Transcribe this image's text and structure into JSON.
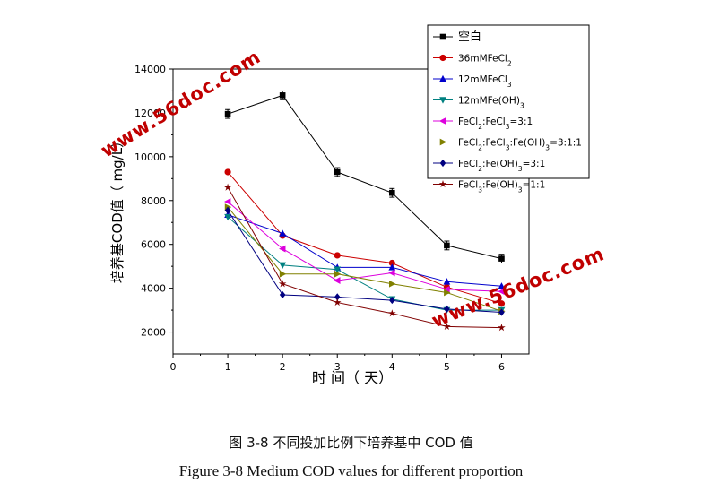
{
  "chart_data": {
    "type": "line",
    "xlabel": "时 间（ 天）",
    "ylabel": "培养基COD值（ mg/L）",
    "x": [
      1,
      2,
      3,
      4,
      5,
      6
    ],
    "xlim": [
      0,
      6.5
    ],
    "ylim": [
      1000,
      14000
    ],
    "x_ticks": [
      0,
      1,
      2,
      3,
      4,
      5,
      6
    ],
    "y_ticks": [
      2000,
      4000,
      6000,
      8000,
      10000,
      12000,
      14000
    ],
    "grid": false,
    "legend_position": "top-right",
    "series": [
      {
        "name": "空白",
        "color": "#000000",
        "marker": "square",
        "values": [
          11950,
          12800,
          9300,
          8350,
          5950,
          5350
        ]
      },
      {
        "name": "36mMFeCl",
        "sub": "2",
        "suffix": "",
        "color": "#cc0000",
        "marker": "circle",
        "values": [
          9300,
          6400,
          5500,
          5150,
          4050,
          3300
        ]
      },
      {
        "name": "12mMFeCl",
        "sub": "3",
        "suffix": "",
        "color": "#0000cc",
        "marker": "triangle-up",
        "values": [
          7350,
          6500,
          4950,
          4950,
          4300,
          4100
        ]
      },
      {
        "name": "12mMFe(OH)",
        "sub": "3",
        "suffix": "",
        "color": "#008080",
        "marker": "triangle-down",
        "values": [
          7250,
          5050,
          4850,
          3500,
          3000,
          3000
        ]
      },
      {
        "name": "FeCl",
        "sub": "2",
        "suffix": ":FeCl",
        "sub2": "3",
        "suffix2": "=3:1",
        "color": "#dd00dd",
        "marker": "triangle-left",
        "values": [
          7950,
          5800,
          4350,
          4700,
          3950,
          3850
        ]
      },
      {
        "name": "FeCl",
        "sub": "2",
        "suffix": ":FeCl",
        "sub2": "3",
        "suffix2": ":Fe(OH)",
        "sub3": "3",
        "suffix3": "=3:1:1",
        "color": "#808000",
        "marker": "triangle-right",
        "values": [
          7700,
          4650,
          4650,
          4200,
          3800,
          2950
        ]
      },
      {
        "name": "FeCl",
        "sub": "2",
        "suffix": ":Fe(OH)",
        "sub2": "3",
        "suffix2": "=3:1",
        "color": "#000080",
        "marker": "diamond",
        "values": [
          7550,
          3700,
          3600,
          3450,
          3050,
          2900
        ]
      },
      {
        "name": "FeCl",
        "sub": "3",
        "suffix": ":Fe(OH)",
        "sub2": "3",
        "suffix2": "=1:1",
        "color": "#800000",
        "marker": "star",
        "values": [
          8600,
          4200,
          3350,
          2850,
          2250,
          2200
        ]
      }
    ],
    "error_bars": {
      "series_index": 0,
      "size": 200
    }
  },
  "watermarks": [
    "www.56doc.com",
    "www.56doc.com"
  ],
  "caption_cn": "图 3-8 不同投加比例下培养基中 COD 值",
  "caption_en": "Figure 3-8 Medium COD values for different proportion"
}
